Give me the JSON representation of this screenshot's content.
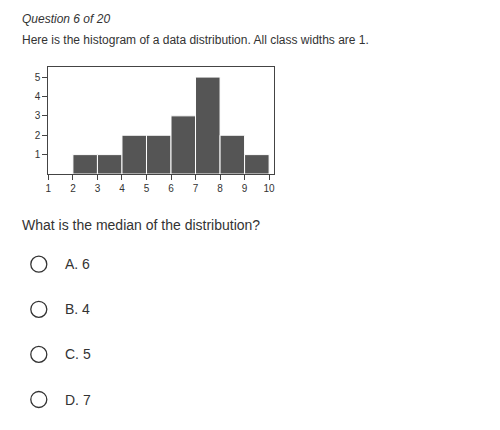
{
  "chart_data": {
    "type": "histogram",
    "title": "Question 6 of 20",
    "subtitle": "Here is the histogram of a data distribution. All class widths are 1.",
    "bins": [
      2,
      3,
      4,
      5,
      6,
      7,
      8,
      9,
      10
    ],
    "values": [
      1,
      1,
      2,
      2,
      3,
      5,
      2,
      1
    ],
    "color": "#555555",
    "xlim": [
      1,
      10.2
    ],
    "ylim": [
      0,
      5.5
    ],
    "xticks": [
      1,
      2,
      3,
      4,
      5,
      6,
      7,
      8,
      9,
      10
    ],
    "yticks": [
      1,
      2,
      3,
      4,
      5
    ],
    "grid": false,
    "annotations": [
      "What is the median of the distribution?",
      "A. 6",
      "B. 4",
      "C. 5",
      "D. 7"
    ]
  }
}
